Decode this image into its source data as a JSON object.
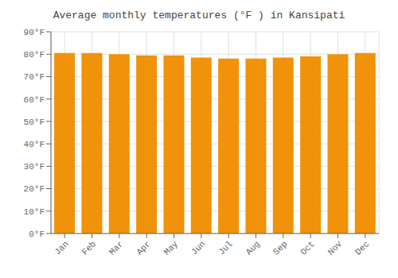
{
  "chart_data": {
    "type": "bar",
    "title": "Average monthly temperatures (°F ) in Kansipati",
    "categories": [
      "Jan",
      "Feb",
      "Mar",
      "Apr",
      "May",
      "Jun",
      "Jul",
      "Aug",
      "Sep",
      "Oct",
      "Nov",
      "Dec"
    ],
    "values": [
      80.5,
      80.5,
      80.0,
      79.5,
      79.5,
      78.5,
      78.0,
      78.0,
      78.5,
      79.0,
      80.0,
      80.5
    ],
    "color": "#F0920A",
    "ylim": [
      0,
      90
    ],
    "yticks": [
      {
        "value": 0,
        "label": "0°F"
      },
      {
        "value": 10,
        "label": "10°F"
      },
      {
        "value": 20,
        "label": "20°F"
      },
      {
        "value": 30,
        "label": "30°F"
      },
      {
        "value": 40,
        "label": "40°F"
      },
      {
        "value": 50,
        "label": "50°F"
      },
      {
        "value": 60,
        "label": "60°F"
      },
      {
        "value": 70,
        "label": "70°F"
      },
      {
        "value": 80,
        "label": "80°F"
      },
      {
        "value": 90,
        "label": "90°F"
      }
    ],
    "grid": true
  }
}
